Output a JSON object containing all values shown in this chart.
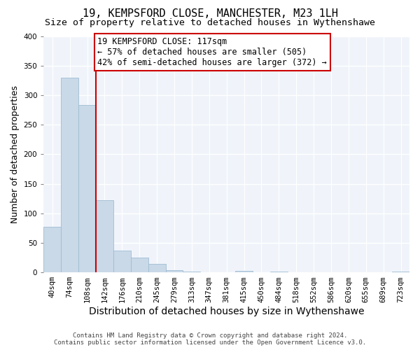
{
  "title": "19, KEMPSFORD CLOSE, MANCHESTER, M23 1LH",
  "subtitle": "Size of property relative to detached houses in Wythenshawe",
  "xlabel": "Distribution of detached houses by size in Wythenshawe",
  "ylabel": "Number of detached properties",
  "bin_labels": [
    "40sqm",
    "74sqm",
    "108sqm",
    "142sqm",
    "176sqm",
    "210sqm",
    "245sqm",
    "279sqm",
    "313sqm",
    "347sqm",
    "381sqm",
    "415sqm",
    "450sqm",
    "484sqm",
    "518sqm",
    "552sqm",
    "586sqm",
    "620sqm",
    "655sqm",
    "689sqm",
    "723sqm"
  ],
  "bar_values": [
    77,
    330,
    283,
    122,
    37,
    25,
    15,
    4,
    1,
    0,
    0,
    3,
    0,
    1,
    0,
    0,
    0,
    0,
    0,
    0,
    1
  ],
  "bar_color": "#c9d9e8",
  "bar_edge_color": "#a0bcd4",
  "property_line_x": 2,
  "annotation_title": "19 KEMPSFORD CLOSE: 117sqm",
  "annotation_line1": "← 57% of detached houses are smaller (505)",
  "annotation_line2": "42% of semi-detached houses are larger (372) →",
  "annotation_box_color": "#ffffff",
  "annotation_box_edge_color": "#cc0000",
  "vline_color": "#cc0000",
  "ylim": [
    0,
    400
  ],
  "yticks": [
    0,
    50,
    100,
    150,
    200,
    250,
    300,
    350,
    400
  ],
  "footer_line1": "Contains HM Land Registry data © Crown copyright and database right 2024.",
  "footer_line2": "Contains public sector information licensed under the Open Government Licence v3.0.",
  "bg_color": "#ffffff",
  "plot_bg_color": "#f0f4fa",
  "title_fontsize": 11,
  "subtitle_fontsize": 9.5,
  "axis_label_fontsize": 9,
  "tick_fontsize": 7.5,
  "annotation_fontsize": 8.5,
  "footer_fontsize": 6.5
}
